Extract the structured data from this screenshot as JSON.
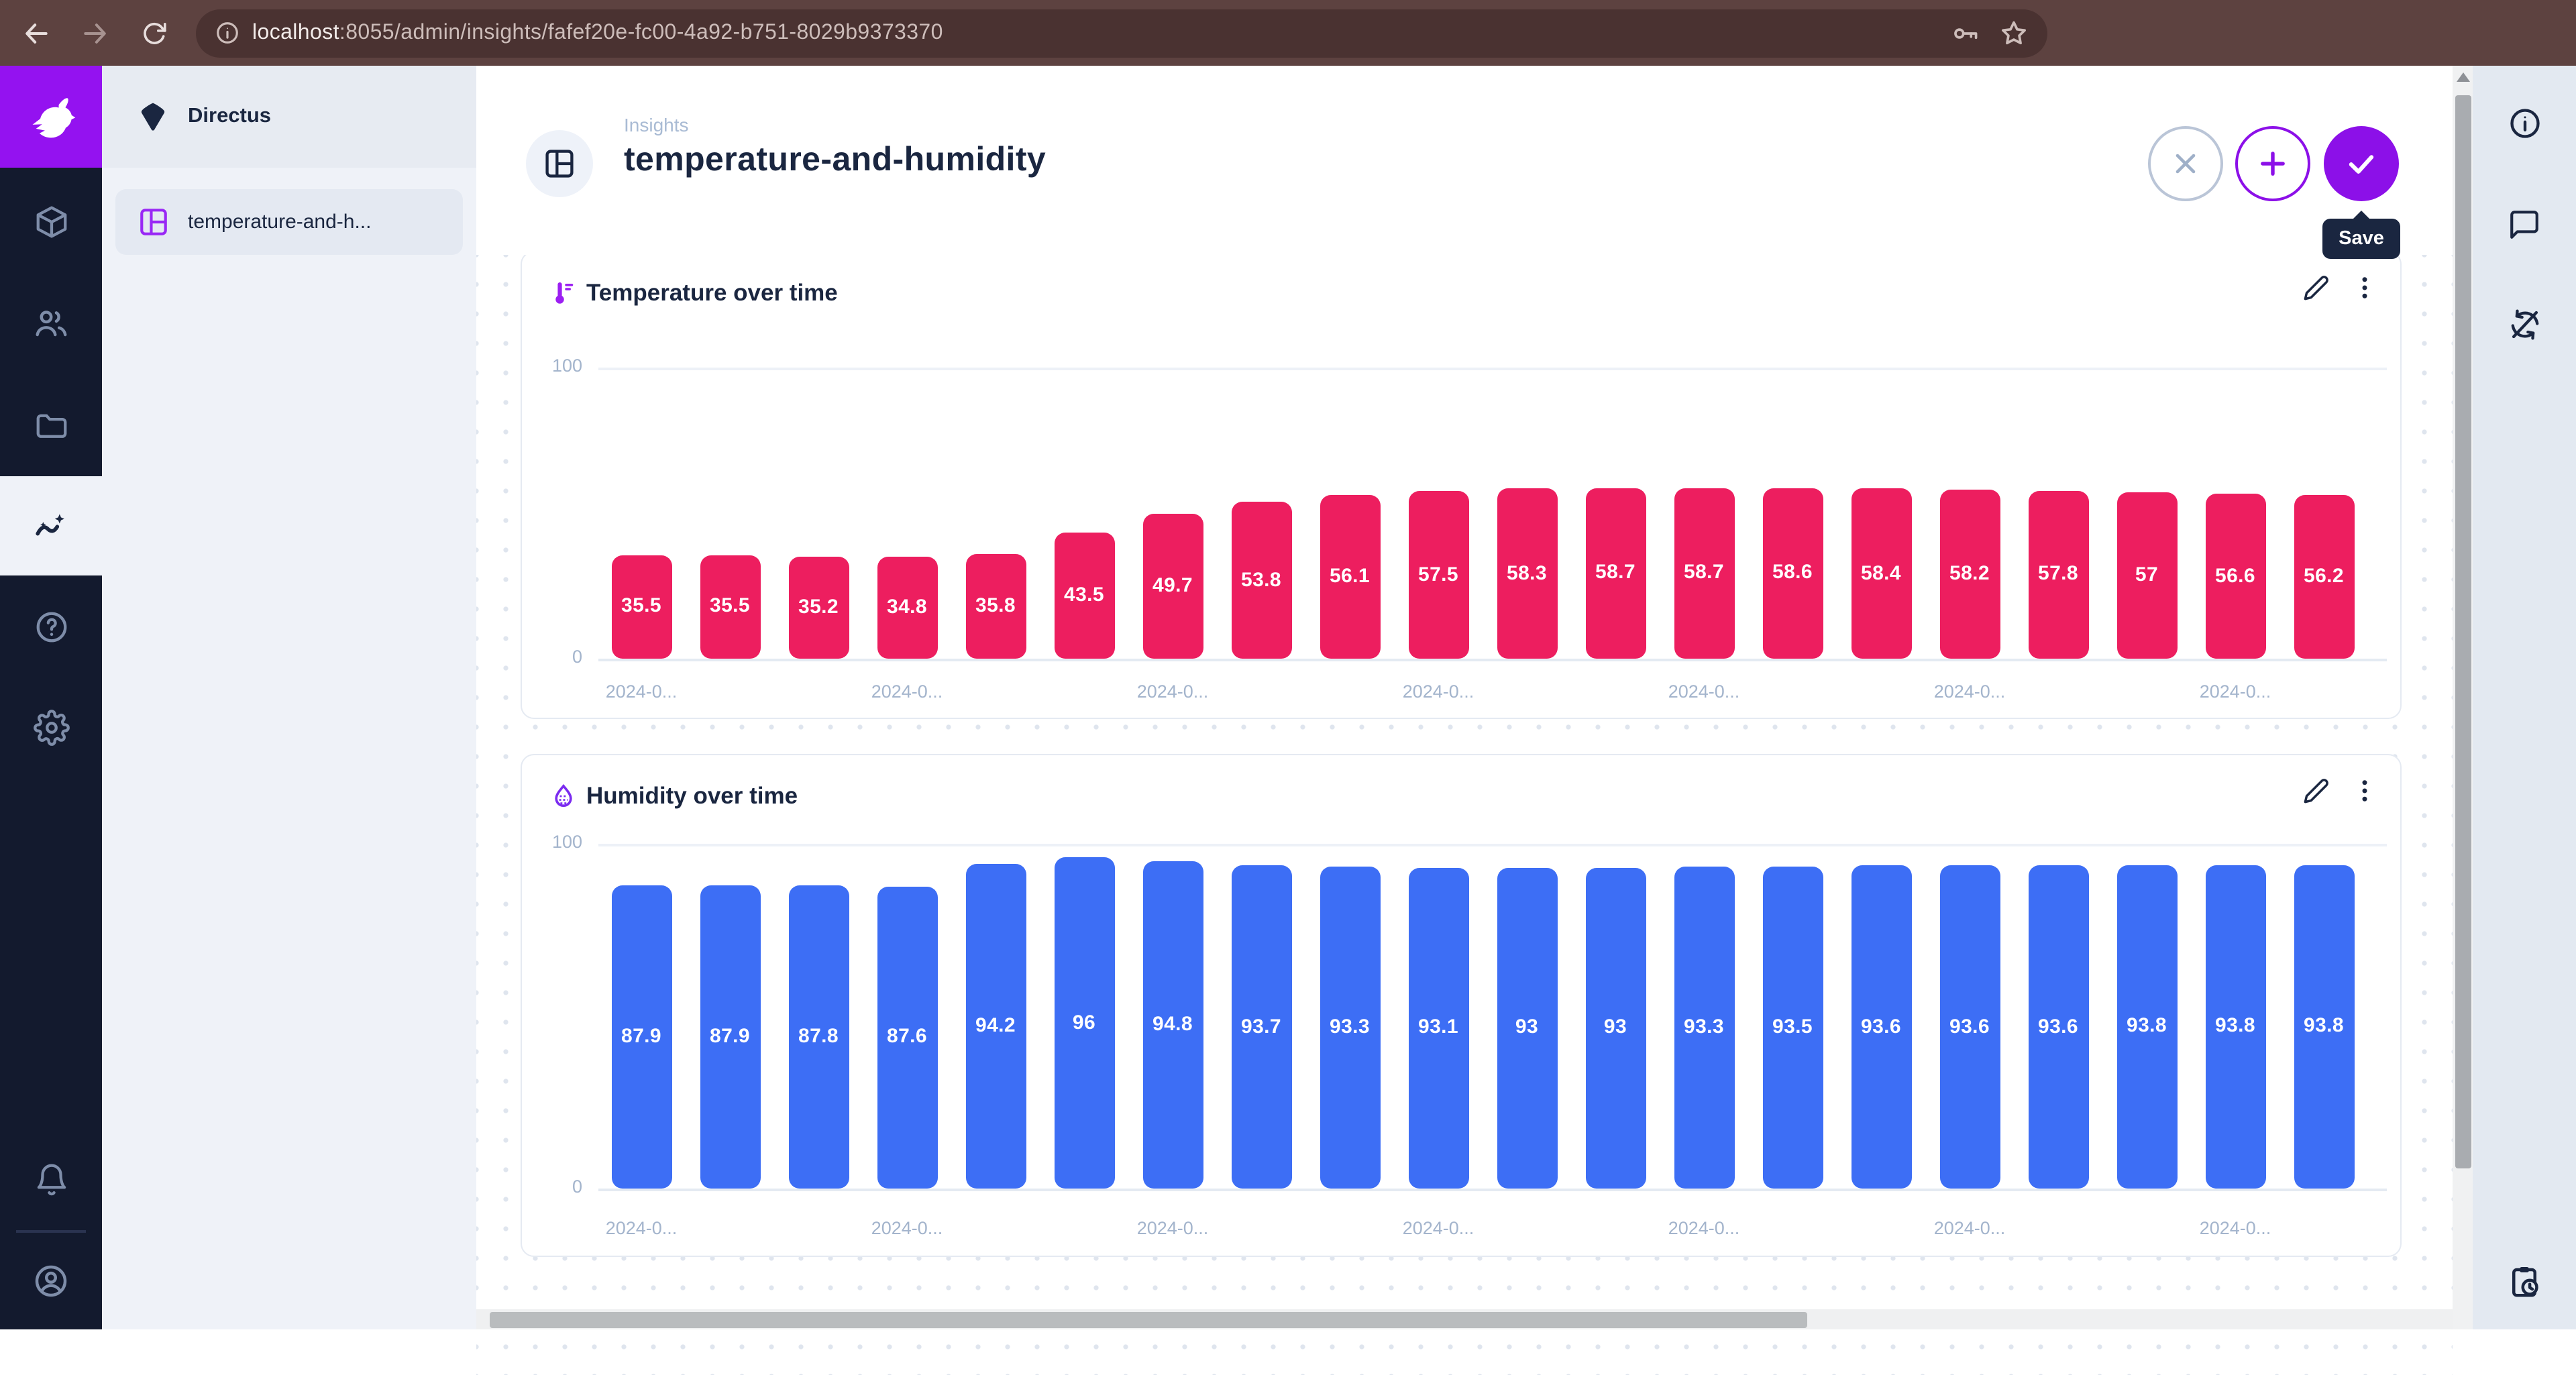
{
  "browser": {
    "url": "localhost:8055/admin/insights/fafef20e-fc00-4a92-b751-8029b9373370",
    "url_host": "localhost",
    "url_rest": ":8055/admin/insights/fafef20e-fc00-4a92-b751-8029b9373370",
    "icons": [
      "back-icon",
      "forward-icon",
      "refresh-icon",
      "page-info-icon",
      "key-icon",
      "star-icon"
    ]
  },
  "module_bar": {
    "logo_icon": "directus-rabbit-logo",
    "items": [
      {
        "icon": "box-icon",
        "active": false
      },
      {
        "icon": "people-icon",
        "active": false
      },
      {
        "icon": "folder-icon",
        "active": false
      },
      {
        "icon": "insights-icon",
        "active": true
      },
      {
        "icon": "help-icon",
        "active": false
      },
      {
        "icon": "settings-icon",
        "active": false
      }
    ],
    "bottom_items": [
      {
        "icon": "bell-icon"
      },
      {
        "icon": "user-circle-icon"
      }
    ]
  },
  "sidebar": {
    "project_name": "Directus",
    "project_icon": "project-diamond-icon",
    "items": [
      {
        "label": "temperature-and-h...",
        "icon": "dashboard-icon",
        "active": true
      }
    ]
  },
  "header": {
    "breadcrumb": "Insights",
    "title": "temperature-and-humidity",
    "title_icon": "dashboard-icon",
    "actions": [
      {
        "name": "discard-changes",
        "icon": "close-icon"
      },
      {
        "name": "add-panel",
        "icon": "plus-icon"
      },
      {
        "name": "save",
        "icon": "check-icon"
      }
    ],
    "tooltip": "Save"
  },
  "panels": [
    {
      "title": "Temperature over time",
      "icon": "thermometer-icon",
      "icon_color": "#9C1FF2",
      "chart_data": {
        "type": "bar",
        "title": "Temperature over time",
        "values": [
          35.5,
          35.5,
          35.2,
          34.8,
          35.8,
          43.5,
          49.7,
          53.8,
          56.1,
          57.5,
          58.3,
          58.7,
          58.7,
          58.6,
          58.4,
          58.2,
          57.8,
          57,
          56.6,
          56.2
        ],
        "bar_color": "#ED1E5F",
        "label_color": "#ffffff",
        "ylim": [
          0,
          100
        ],
        "yticks": [
          100,
          0
        ],
        "xtick_labels": [
          "2024-0...",
          "2024-0...",
          "2024-0...",
          "2024-0...",
          "2024-0...",
          "2024-0...",
          "2024-0..."
        ],
        "xtick_every": 3,
        "grid": true,
        "legend": "none",
        "xlabel": "",
        "ylabel": ""
      }
    },
    {
      "title": "Humidity over time",
      "icon": "humidity-icon",
      "icon_color": "#7B2BF0",
      "chart_data": {
        "type": "bar",
        "title": "Humidity over time",
        "values": [
          87.9,
          87.9,
          87.8,
          87.6,
          94.2,
          96,
          94.8,
          93.7,
          93.3,
          93.1,
          93,
          93,
          93.3,
          93.5,
          93.6,
          93.6,
          93.6,
          93.8,
          93.8,
          93.8
        ],
        "bar_color": "#3D6EF5",
        "label_color": "#ffffff",
        "ylim": [
          0,
          100
        ],
        "yticks": [
          100,
          0
        ],
        "xtick_labels": [
          "2024-0...",
          "2024-0...",
          "2024-0...",
          "2024-0...",
          "2024-0...",
          "2024-0...",
          "2024-0..."
        ],
        "xtick_every": 3,
        "grid": true,
        "legend": "none",
        "xlabel": "",
        "ylabel": ""
      }
    }
  ],
  "right_sidebar": {
    "icons": [
      "info-icon",
      "comment-icon",
      "auto-refresh-off-icon",
      "clipboard-clock-icon"
    ]
  },
  "colors": {
    "browser_bar_bg": "#5D4240",
    "url_pill_bg": "#4A3231",
    "module_bar_bg": "#131A2E",
    "logo_purple": "#9412F0",
    "accent_purple": "#8C10E8",
    "temperature_bar": "#ED1E5F",
    "humidity_bar": "#3D6EF5",
    "text_navy": "#1A2640",
    "axis_label": "#A3B4CC",
    "sidebar_bg": "#EFF2F8",
    "right_sidebar_bg": "#E3E9F1"
  }
}
